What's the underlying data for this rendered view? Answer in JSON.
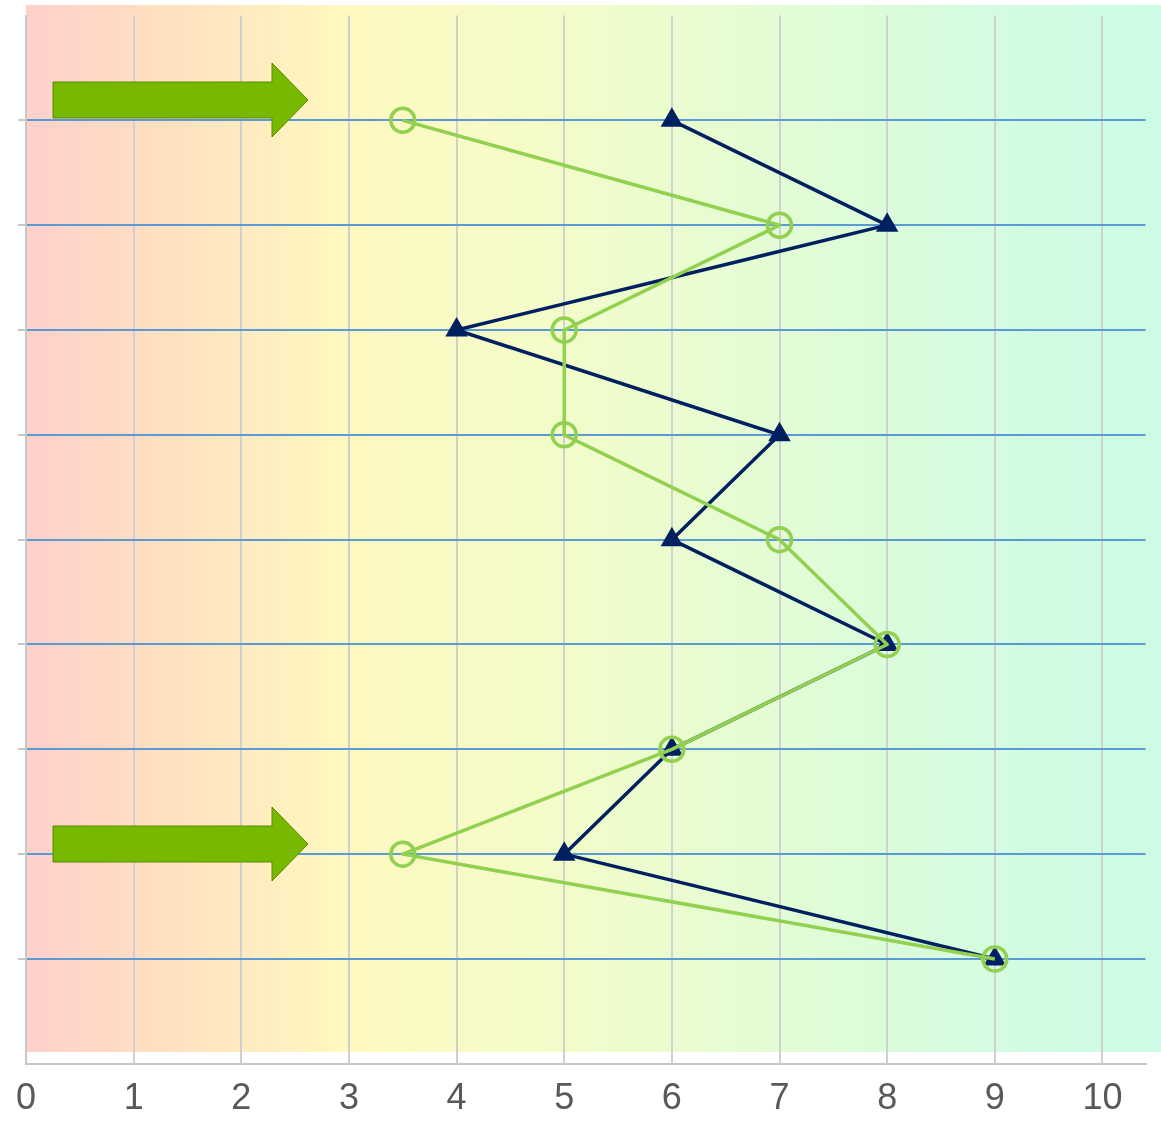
{
  "chart_data": {
    "type": "line",
    "orientation": "horizontal",
    "categories": [
      null,
      null,
      null,
      null,
      null,
      null,
      null,
      null,
      null
    ],
    "series": [
      {
        "color": "#92d050",
        "marker": "circle",
        "values": [
          3.5,
          7,
          5,
          5,
          7,
          8,
          6,
          3.5,
          9
        ]
      },
      {
        "color": "#002060",
        "marker": "triangle",
        "values": [
          6,
          8,
          4,
          7,
          6,
          8,
          6,
          5,
          9
        ]
      }
    ],
    "xlim": [
      0,
      10.4
    ],
    "xticks": [
      0,
      1,
      2,
      3,
      4,
      5,
      6,
      7,
      8,
      9,
      10
    ],
    "grid": true,
    "line_style": "solid"
  }
}
